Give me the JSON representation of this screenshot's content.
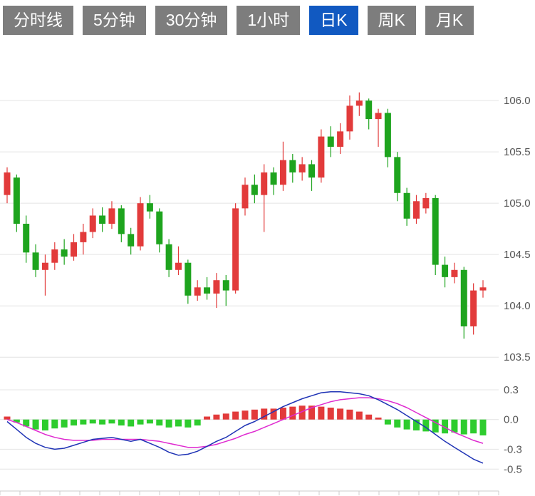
{
  "tabs": [
    {
      "id": "minute-line",
      "label": "分时线",
      "active": false
    },
    {
      "id": "5min",
      "label": "5分钟",
      "active": false
    },
    {
      "id": "30min",
      "label": "30分钟",
      "active": false
    },
    {
      "id": "1hour",
      "label": "1小时",
      "active": false
    },
    {
      "id": "daily-k",
      "label": "日K",
      "active": true
    },
    {
      "id": "weekly-k",
      "label": "周K",
      "active": false
    },
    {
      "id": "monthly-k",
      "label": "月K",
      "active": false
    }
  ],
  "colors": {
    "tab_bg": "#7d7d7d",
    "tab_active_bg": "#1159c1",
    "tab_text": "#ffffff",
    "up": "#e23b3b",
    "down": "#1ea41e",
    "hist_up": "#e23b3b",
    "hist_down": "#2ecc2e",
    "dif_line": "#1f33b5",
    "dea_line": "#df2ad0",
    "grid": "#e4e4e4",
    "axis_line": "#cccccc",
    "axis_label": "#555555"
  },
  "chart_data": [
    {
      "type": "candlestick",
      "title": "日K",
      "legend": [],
      "grid": true,
      "yticks": [
        106.0,
        105.5,
        105.0,
        104.5,
        104.0,
        103.5
      ],
      "ylim": [
        103.3,
        106.39
      ],
      "candles_format": "[open, high, low, close]",
      "candles": [
        [
          105.08,
          105.35,
          105.0,
          105.3
        ],
        [
          105.25,
          105.28,
          104.72,
          104.8
        ],
        [
          104.8,
          104.88,
          104.42,
          104.52
        ],
        [
          104.52,
          104.6,
          104.28,
          104.35
        ],
        [
          104.35,
          104.5,
          104.1,
          104.42
        ],
        [
          104.42,
          104.62,
          104.35,
          104.55
        ],
        [
          104.55,
          104.65,
          104.4,
          104.48
        ],
        [
          104.48,
          104.7,
          104.44,
          104.62
        ],
        [
          104.62,
          104.8,
          104.5,
          104.72
        ],
        [
          104.72,
          104.95,
          104.66,
          104.88
        ],
        [
          104.88,
          104.96,
          104.72,
          104.8
        ],
        [
          104.8,
          105.02,
          104.75,
          104.95
        ],
        [
          104.95,
          104.98,
          104.62,
          104.7
        ],
        [
          104.7,
          104.76,
          104.5,
          104.58
        ],
        [
          104.58,
          105.06,
          104.54,
          105.0
        ],
        [
          105.0,
          105.08,
          104.85,
          104.92
        ],
        [
          104.92,
          104.95,
          104.52,
          104.6
        ],
        [
          104.6,
          104.65,
          104.28,
          104.35
        ],
        [
          104.35,
          104.58,
          104.3,
          104.42
        ],
        [
          104.42,
          104.45,
          104.02,
          104.1
        ],
        [
          104.1,
          104.25,
          104.05,
          104.18
        ],
        [
          104.18,
          104.28,
          104.06,
          104.12
        ],
        [
          104.12,
          104.32,
          103.98,
          104.25
        ],
        [
          104.25,
          104.3,
          104.0,
          104.15
        ],
        [
          104.15,
          105.0,
          104.12,
          104.95
        ],
        [
          104.95,
          105.25,
          104.88,
          105.18
        ],
        [
          105.18,
          105.28,
          105.0,
          105.08
        ],
        [
          105.08,
          105.38,
          104.72,
          105.3
        ],
        [
          105.3,
          105.35,
          105.08,
          105.18
        ],
        [
          105.18,
          105.6,
          105.12,
          105.42
        ],
        [
          105.42,
          105.48,
          105.2,
          105.3
        ],
        [
          105.3,
          105.45,
          105.22,
          105.38
        ],
        [
          105.38,
          105.42,
          105.12,
          105.25
        ],
        [
          105.25,
          105.72,
          105.2,
          105.65
        ],
        [
          105.65,
          105.75,
          105.45,
          105.55
        ],
        [
          105.55,
          105.78,
          105.48,
          105.7
        ],
        [
          105.7,
          106.05,
          105.62,
          105.95
        ],
        [
          105.95,
          106.08,
          105.85,
          106.0
        ],
        [
          106.0,
          106.02,
          105.72,
          105.82
        ],
        [
          105.82,
          105.92,
          105.55,
          105.88
        ],
        [
          105.88,
          105.92,
          105.35,
          105.45
        ],
        [
          105.45,
          105.5,
          105.02,
          105.1
        ],
        [
          105.1,
          105.15,
          104.78,
          104.85
        ],
        [
          104.85,
          105.08,
          104.8,
          105.02
        ],
        [
          104.95,
          105.1,
          104.9,
          105.05
        ],
        [
          105.05,
          105.08,
          104.3,
          104.4
        ],
        [
          104.4,
          104.48,
          104.18,
          104.28
        ],
        [
          104.28,
          104.42,
          104.22,
          104.35
        ],
        [
          104.35,
          104.38,
          103.68,
          103.8
        ],
        [
          103.8,
          104.22,
          103.72,
          104.15
        ],
        [
          104.15,
          104.25,
          104.08,
          104.18
        ]
      ]
    },
    {
      "type": "macd",
      "title": "MACD",
      "grid": true,
      "yticks": [
        0.3,
        0.0,
        -0.3,
        -0.5
      ],
      "ylim": [
        -0.57,
        0.35
      ],
      "histogram": [
        0.03,
        -0.03,
        -0.07,
        -0.1,
        -0.11,
        -0.09,
        -0.08,
        -0.06,
        -0.05,
        -0.04,
        -0.05,
        -0.04,
        -0.06,
        -0.07,
        -0.05,
        -0.04,
        -0.06,
        -0.08,
        -0.07,
        -0.08,
        -0.06,
        0.03,
        0.05,
        0.06,
        0.08,
        0.09,
        0.1,
        0.11,
        0.11,
        0.12,
        0.13,
        0.14,
        0.14,
        0.13,
        0.12,
        0.11,
        0.1,
        0.08,
        0.05,
        0.02,
        -0.05,
        -0.08,
        -0.1,
        -0.11,
        -0.12,
        -0.13,
        -0.14,
        -0.13,
        -0.15,
        -0.14,
        -0.16
      ],
      "series": [
        {
          "name": "DIF",
          "color": "#1f33b5",
          "values": [
            -0.02,
            -0.1,
            -0.18,
            -0.24,
            -0.28,
            -0.3,
            -0.29,
            -0.26,
            -0.23,
            -0.2,
            -0.19,
            -0.18,
            -0.2,
            -0.22,
            -0.2,
            -0.24,
            -0.28,
            -0.33,
            -0.36,
            -0.35,
            -0.32,
            -0.27,
            -0.22,
            -0.18,
            -0.12,
            -0.06,
            -0.02,
            0.03,
            0.08,
            0.13,
            0.17,
            0.21,
            0.24,
            0.27,
            0.28,
            0.28,
            0.27,
            0.26,
            0.24,
            0.2,
            0.15,
            0.1,
            0.04,
            -0.02,
            -0.08,
            -0.15,
            -0.22,
            -0.28,
            -0.34,
            -0.4,
            -0.44
          ]
        },
        {
          "name": "DEA",
          "color": "#df2ad0",
          "values": [
            0.0,
            -0.03,
            -0.07,
            -0.11,
            -0.15,
            -0.18,
            -0.2,
            -0.21,
            -0.21,
            -0.21,
            -0.2,
            -0.2,
            -0.2,
            -0.2,
            -0.2,
            -0.21,
            -0.22,
            -0.24,
            -0.26,
            -0.28,
            -0.28,
            -0.27,
            -0.25,
            -0.22,
            -0.19,
            -0.15,
            -0.12,
            -0.08,
            -0.04,
            0.0,
            0.04,
            0.08,
            0.12,
            0.15,
            0.18,
            0.2,
            0.21,
            0.22,
            0.22,
            0.21,
            0.19,
            0.16,
            0.12,
            0.07,
            0.02,
            -0.03,
            -0.08,
            -0.13,
            -0.17,
            -0.21,
            -0.24
          ]
        }
      ]
    }
  ]
}
